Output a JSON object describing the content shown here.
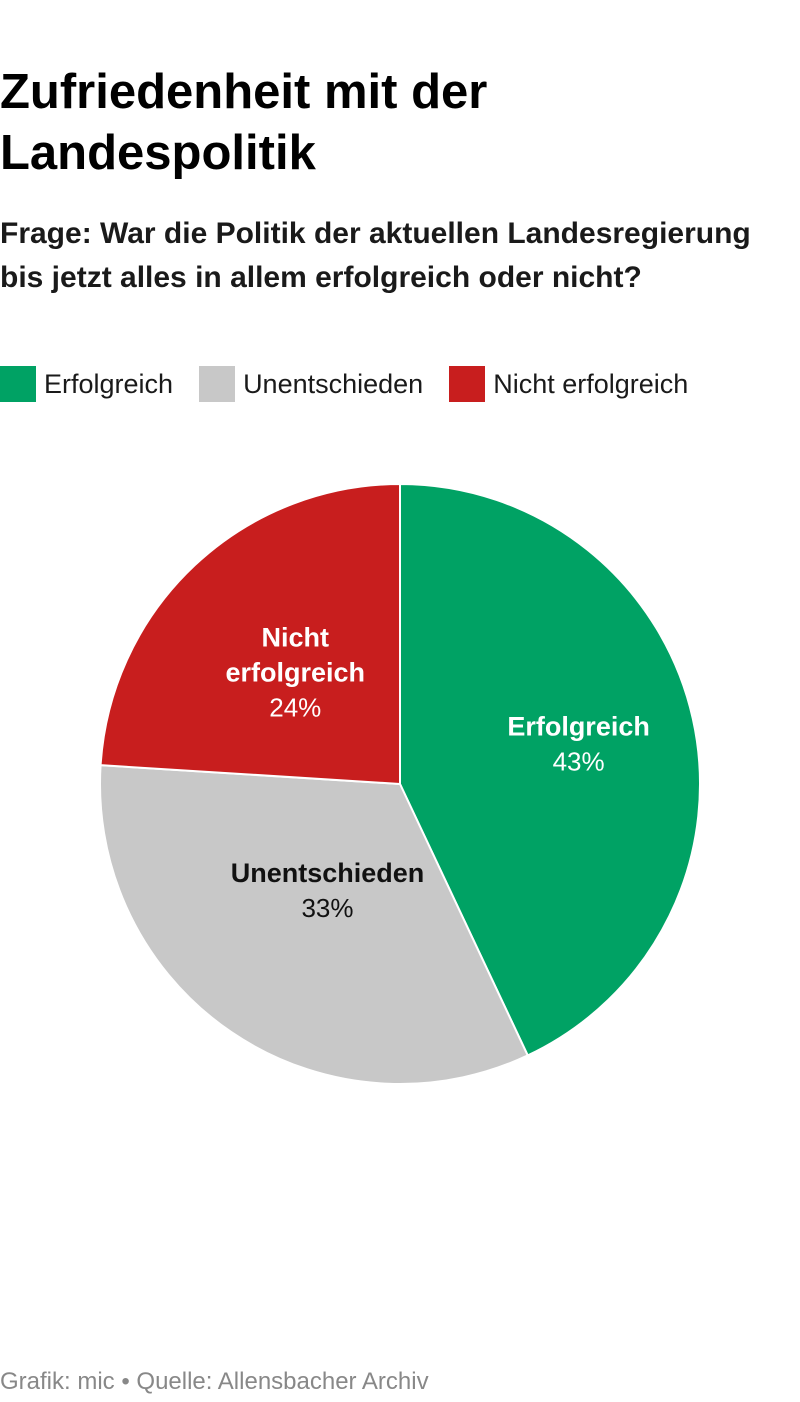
{
  "title": "Zufriedenheit mit der Landespolitik",
  "subtitle": "Frage: War die Politik der aktuellen Landesregierung bis jetzt alles in allem erfolgreich oder nicht?",
  "legend": [
    {
      "label": "Erfolgreich",
      "color": "#00a264"
    },
    {
      "label": "Unentschieden",
      "color": "#c8c8c8"
    },
    {
      "label": "Nicht erfolgreich",
      "color": "#c81e1e"
    }
  ],
  "chart_data": {
    "type": "pie",
    "title": "Zufriedenheit mit der Landespolitik",
    "categories": [
      "Erfolgreich",
      "Unentschieden",
      "Nicht erfolgreich"
    ],
    "values": [
      43,
      33,
      24
    ],
    "unit": "%",
    "colors": [
      "#00a264",
      "#c8c8c8",
      "#c81e1e"
    ],
    "legend_position": "top-left",
    "slice_labels": [
      {
        "lines": [
          "Erfolgreich"
        ],
        "value": "43%",
        "color": "#ffffff"
      },
      {
        "lines": [
          "Unentschieden"
        ],
        "value": "33%",
        "color": "#111111"
      },
      {
        "lines": [
          "Nicht",
          "erfolgreich"
        ],
        "value": "24%",
        "color": "#ffffff"
      }
    ]
  },
  "footer": "Grafik: mic • Quelle: Allensbacher Archiv"
}
